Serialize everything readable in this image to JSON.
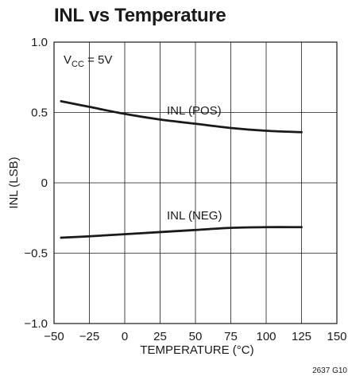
{
  "chart_data": {
    "type": "line",
    "title": "INL vs Temperature",
    "xlabel": "TEMPERATURE (°C)",
    "ylabel": "INL (LSB)",
    "xlim": [
      -50,
      150
    ],
    "ylim": [
      -1.0,
      1.0
    ],
    "x_ticks": [
      -50,
      -25,
      0,
      25,
      50,
      75,
      100,
      125,
      150
    ],
    "x_tick_labels": [
      "−50",
      "−25",
      "0",
      "25",
      "50",
      "75",
      "100",
      "125",
      "150"
    ],
    "y_ticks": [
      1.0,
      0.5,
      0,
      -0.5,
      -1.0
    ],
    "y_tick_labels": [
      "1.0",
      "0.5",
      "0",
      "−0.5",
      "−1.0"
    ],
    "grid": true,
    "series": [
      {
        "name": "INL (POS)",
        "x": [
          -45,
          -25,
          0,
          25,
          50,
          75,
          100,
          125
        ],
        "y": [
          0.58,
          0.54,
          0.49,
          0.45,
          0.42,
          0.39,
          0.37,
          0.36
        ]
      },
      {
        "name": "INL (NEG)",
        "x": [
          -45,
          -25,
          0,
          25,
          50,
          75,
          100,
          125
        ],
        "y": [
          -0.39,
          -0.38,
          -0.365,
          -0.35,
          -0.335,
          -0.32,
          -0.315,
          -0.315
        ]
      }
    ],
    "annotation": {
      "label": "V",
      "subscript": "CC",
      "rest": " = 5V"
    },
    "figure_id": "2637 G10"
  }
}
